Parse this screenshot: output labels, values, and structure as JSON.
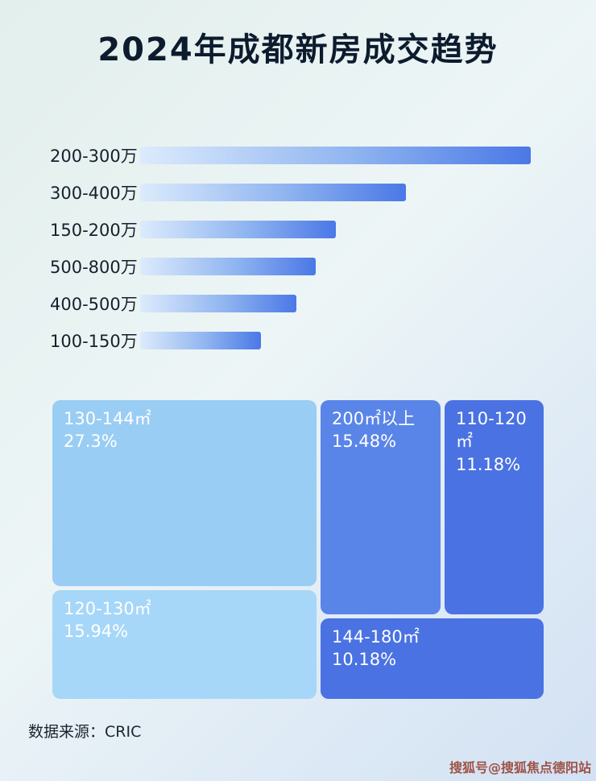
{
  "title": "2024年成都新房成交趋势",
  "footer": {
    "source": "数据来源：CRIC"
  },
  "watermark": "搜狐号@搜狐焦点德阳站",
  "colors": {
    "bar_gradient_start": "#dcebfc",
    "bar_gradient_end": "#4a78e6",
    "title_text": "#0d1b2e",
    "background_top": "#e2efec",
    "background_bottom": "#d2e1f4"
  },
  "chart_data": [
    {
      "type": "bar",
      "orientation": "horizontal",
      "title": "2024年成都新房成交趋势",
      "categories": [
        "200-300万",
        "300-400万",
        "150-200万",
        "500-800万",
        "400-500万",
        "100-150万"
      ],
      "values": [
        100,
        68,
        50,
        45,
        40,
        31
      ],
      "value_unit": "relative bar length, % of longest bar (no numeric axis shown)",
      "xlabel": "",
      "ylabel": "",
      "grid": false,
      "legend": false
    },
    {
      "type": "treemap",
      "title": "",
      "items": [
        {
          "label": "130-144㎡",
          "value": "27.3%",
          "color": "#99cdf4"
        },
        {
          "label": "200㎡以上",
          "value": "15.48%",
          "color": "#5a85e8"
        },
        {
          "label": "110-120㎡",
          "value": "11.18%",
          "color": "#4a72e2"
        },
        {
          "label": "120-130㎡",
          "value": "15.94%",
          "color": "#a6d7f8"
        },
        {
          "label": "144-180㎡",
          "value": "10.18%",
          "color": "#4a72e2"
        }
      ]
    }
  ]
}
